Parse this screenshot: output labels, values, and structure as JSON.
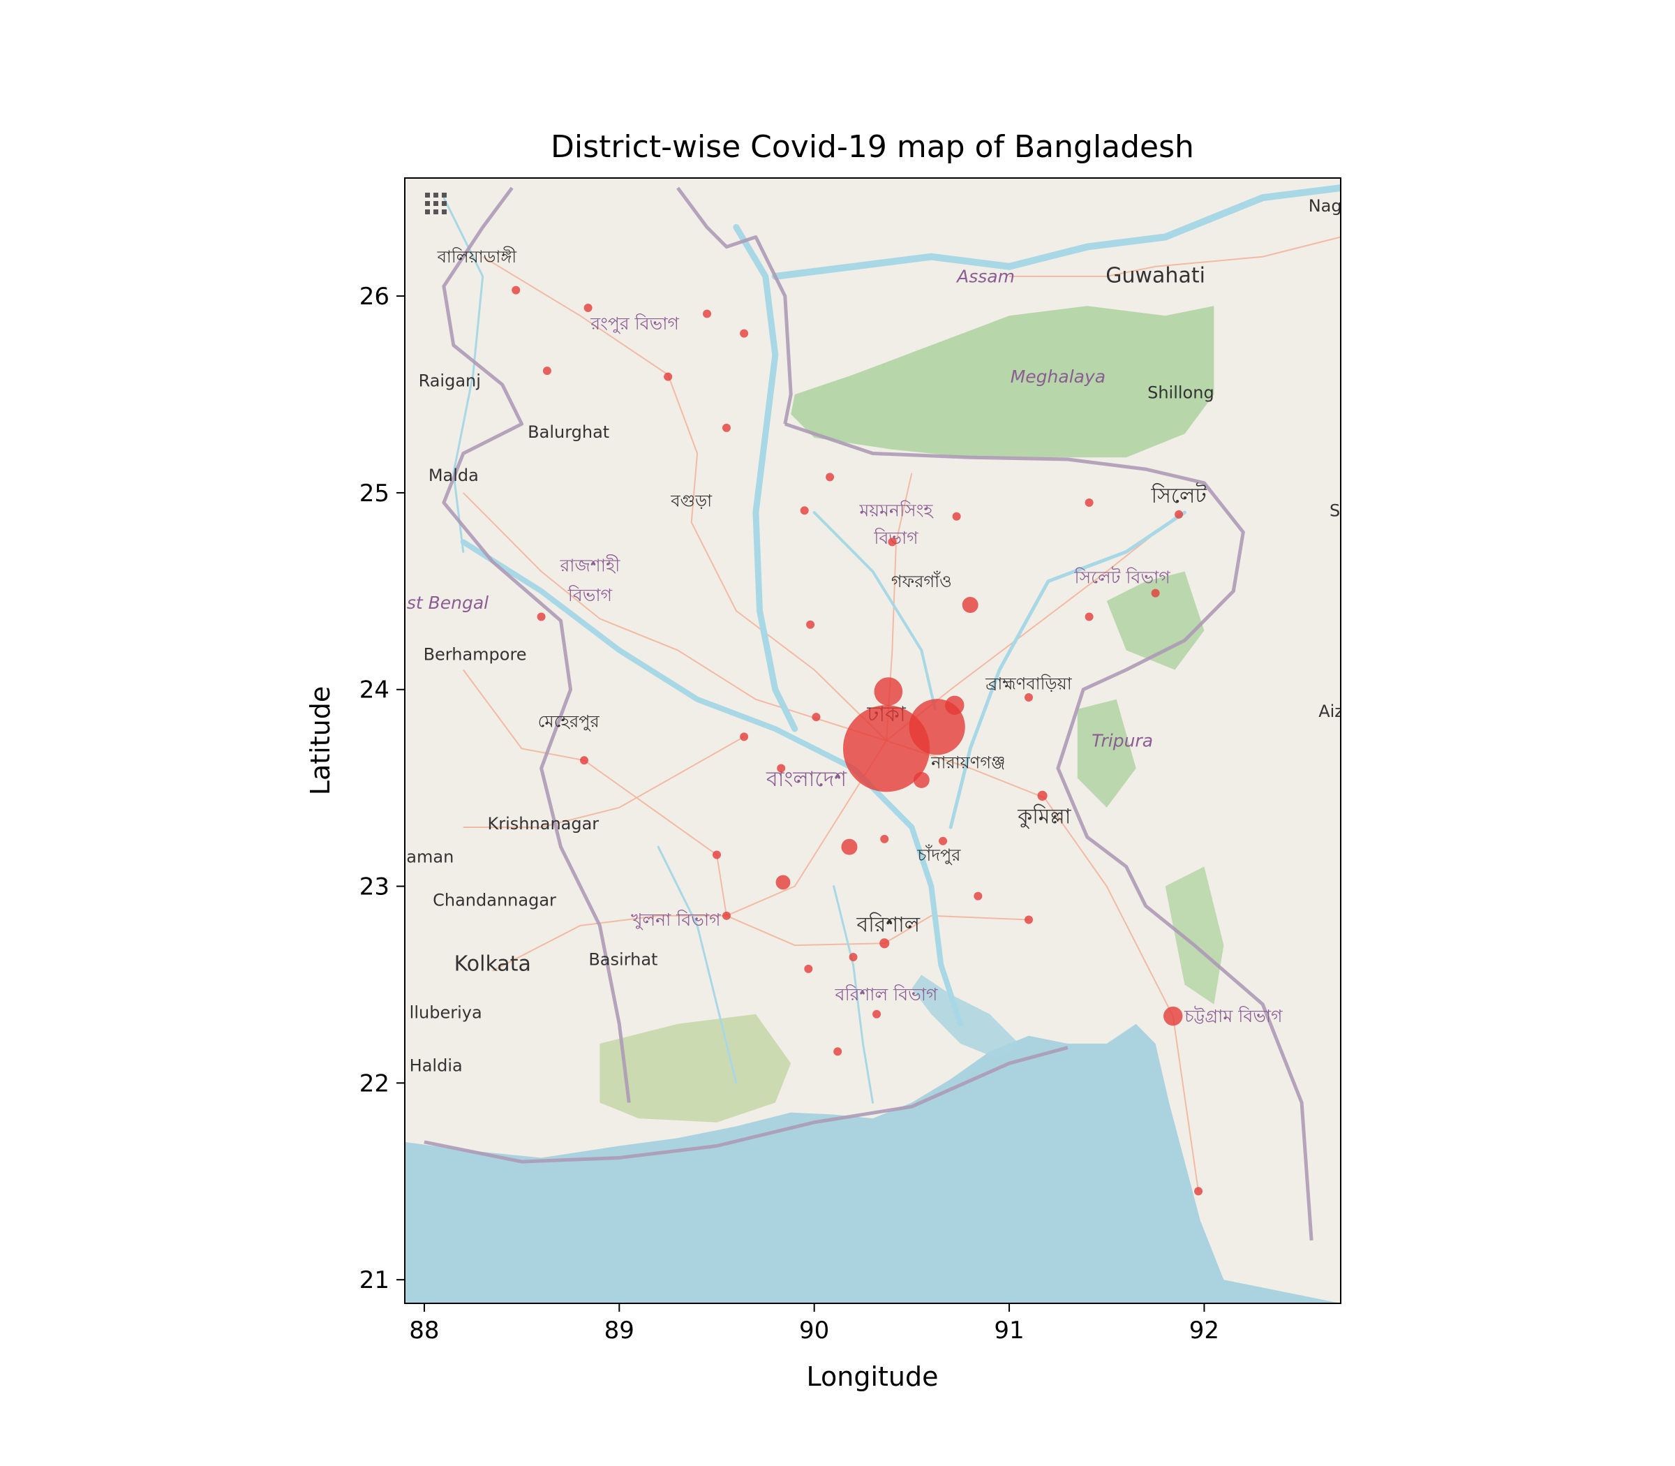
{
  "chart_data": {
    "type": "scatter",
    "title": "District-wise Covid-19 map of Bangladesh",
    "xlabel": "Longitude",
    "ylabel": "Latitude",
    "xlim": [
      87.9,
      92.7
    ],
    "ylim": [
      20.88,
      26.6
    ],
    "xticks": [
      88,
      89,
      90,
      91,
      92
    ],
    "yticks": [
      21,
      22,
      23,
      24,
      25,
      26
    ],
    "grid": false,
    "marker_color": "#e53935",
    "points": [
      {
        "lon": 90.37,
        "lat": 23.7,
        "size": 3
      },
      {
        "lon": 90.63,
        "lat": 23.81,
        "size": 2
      },
      {
        "lon": 90.38,
        "lat": 23.99,
        "size": 1.1
      },
      {
        "lon": 90.72,
        "lat": 23.92,
        "size": 0.8
      },
      {
        "lon": 91.84,
        "lat": 22.34,
        "size": 0.8
      },
      {
        "lon": 90.55,
        "lat": 23.54,
        "size": 0.7
      },
      {
        "lon": 90.8,
        "lat": 24.43,
        "size": 0.7
      },
      {
        "lon": 90.18,
        "lat": 23.2,
        "size": 0.7
      },
      {
        "lon": 89.84,
        "lat": 23.02,
        "size": 0.65
      },
      {
        "lon": 90.36,
        "lat": 22.71,
        "size": 0.5
      },
      {
        "lon": 91.17,
        "lat": 23.46,
        "size": 0.5
      },
      {
        "lon": 88.47,
        "lat": 26.03,
        "size": 0.45
      },
      {
        "lon": 88.84,
        "lat": 25.94,
        "size": 0.45
      },
      {
        "lon": 89.45,
        "lat": 25.91,
        "size": 0.45
      },
      {
        "lon": 89.64,
        "lat": 25.81,
        "size": 0.45
      },
      {
        "lon": 88.63,
        "lat": 25.62,
        "size": 0.45
      },
      {
        "lon": 89.25,
        "lat": 25.59,
        "size": 0.45
      },
      {
        "lon": 89.55,
        "lat": 25.33,
        "size": 0.45
      },
      {
        "lon": 90.08,
        "lat": 25.08,
        "size": 0.45
      },
      {
        "lon": 89.95,
        "lat": 24.91,
        "size": 0.45
      },
      {
        "lon": 90.4,
        "lat": 24.75,
        "size": 0.45
      },
      {
        "lon": 90.73,
        "lat": 24.88,
        "size": 0.45
      },
      {
        "lon": 91.41,
        "lat": 24.95,
        "size": 0.45
      },
      {
        "lon": 91.87,
        "lat": 24.89,
        "size": 0.45
      },
      {
        "lon": 91.75,
        "lat": 24.49,
        "size": 0.45
      },
      {
        "lon": 91.41,
        "lat": 24.37,
        "size": 0.45
      },
      {
        "lon": 88.6,
        "lat": 24.37,
        "size": 0.45
      },
      {
        "lon": 89.98,
        "lat": 24.33,
        "size": 0.45
      },
      {
        "lon": 91.1,
        "lat": 23.96,
        "size": 0.45
      },
      {
        "lon": 90.01,
        "lat": 23.86,
        "size": 0.45
      },
      {
        "lon": 89.64,
        "lat": 23.76,
        "size": 0.45
      },
      {
        "lon": 89.83,
        "lat": 23.6,
        "size": 0.45
      },
      {
        "lon": 88.82,
        "lat": 23.64,
        "size": 0.45
      },
      {
        "lon": 90.36,
        "lat": 23.24,
        "size": 0.45
      },
      {
        "lon": 90.66,
        "lat": 23.23,
        "size": 0.45
      },
      {
        "lon": 89.5,
        "lat": 23.16,
        "size": 0.45
      },
      {
        "lon": 90.84,
        "lat": 22.95,
        "size": 0.45
      },
      {
        "lon": 91.1,
        "lat": 22.83,
        "size": 0.45
      },
      {
        "lon": 89.55,
        "lat": 22.85,
        "size": 0.45
      },
      {
        "lon": 90.2,
        "lat": 22.64,
        "size": 0.45
      },
      {
        "lon": 89.97,
        "lat": 22.58,
        "size": 0.45
      },
      {
        "lon": 90.32,
        "lat": 22.35,
        "size": 0.45
      },
      {
        "lon": 90.12,
        "lat": 22.16,
        "size": 0.45
      },
      {
        "lon": 91.97,
        "lat": 21.45,
        "size": 0.45
      }
    ]
  },
  "basemap": {
    "colors": {
      "land": "#f1eee8",
      "water": "#aad3df",
      "forest": "#add19e",
      "mangrove": "#c8d7ab",
      "border": "#ad9ab6",
      "road": "#f3b49b",
      "river": "#a8d8e6",
      "label": "#333333",
      "region_label": "#8b5d93"
    },
    "places": [
      {
        "name": "বালিয়াডাঙ্গী",
        "lon": 88.27,
        "lat": 26.17,
        "kind": "town"
      },
      {
        "name": "রংপুর বিভাগ",
        "lon": 89.08,
        "lat": 25.83,
        "kind": "region"
      },
      {
        "name": "Raiganj",
        "lon": 88.13,
        "lat": 25.54,
        "kind": "town"
      },
      {
        "name": "Balurghat",
        "lon": 88.74,
        "lat": 25.28,
        "kind": "town"
      },
      {
        "name": "Malda",
        "lon": 88.15,
        "lat": 25.06,
        "kind": "town"
      },
      {
        "name": "বগুড়া",
        "lon": 89.37,
        "lat": 24.93,
        "kind": "town"
      },
      {
        "name": "রাজশাহী",
        "lon": 88.85,
        "lat": 24.6,
        "kind": "region"
      },
      {
        "name": "বিভাগ",
        "lon": 88.85,
        "lat": 24.45,
        "kind": "region"
      },
      {
        "name": "st Bengal",
        "lon": 88.12,
        "lat": 24.41,
        "kind": "region"
      },
      {
        "name": "Berhampore",
        "lon": 88.26,
        "lat": 24.15,
        "kind": "town"
      },
      {
        "name": "মেহেরপুর",
        "lon": 88.74,
        "lat": 23.81,
        "kind": "town"
      },
      {
        "name": "Krishnanagar",
        "lon": 88.61,
        "lat": 23.29,
        "kind": "town"
      },
      {
        "name": "aman",
        "lon": 88.03,
        "lat": 23.12,
        "kind": "town"
      },
      {
        "name": "Chandannagar",
        "lon": 88.36,
        "lat": 22.9,
        "kind": "town"
      },
      {
        "name": "খুলনা বিভাগ",
        "lon": 89.29,
        "lat": 22.8,
        "kind": "region"
      },
      {
        "name": "Kolkata",
        "lon": 88.35,
        "lat": 22.57,
        "kind": "city"
      },
      {
        "name": "Basirhat",
        "lon": 89.02,
        "lat": 22.6,
        "kind": "town"
      },
      {
        "name": "lluberiya",
        "lon": 88.11,
        "lat": 22.33,
        "kind": "town"
      },
      {
        "name": "Haldia",
        "lon": 88.06,
        "lat": 22.06,
        "kind": "town"
      },
      {
        "name": "Assam",
        "lon": 90.88,
        "lat": 26.07,
        "kind": "region"
      },
      {
        "name": "Guwahati",
        "lon": 91.75,
        "lat": 26.07,
        "kind": "city"
      },
      {
        "name": "Meghalaya",
        "lon": 91.25,
        "lat": 25.56,
        "kind": "region"
      },
      {
        "name": "Shillong",
        "lon": 91.88,
        "lat": 25.48,
        "kind": "town"
      },
      {
        "name": "ময়মনসিংহ",
        "lon": 90.42,
        "lat": 24.88,
        "kind": "region"
      },
      {
        "name": "বিভাগ",
        "lon": 90.42,
        "lat": 24.74,
        "kind": "region"
      },
      {
        "name": "গফরগাঁও",
        "lon": 90.55,
        "lat": 24.52,
        "kind": "town"
      },
      {
        "name": "সিলেট",
        "lon": 91.87,
        "lat": 24.95,
        "kind": "city"
      },
      {
        "name": "সিলেট বিভাগ",
        "lon": 91.58,
        "lat": 24.54,
        "kind": "region"
      },
      {
        "name": "ব্রাহ্মণবাড়িয়া",
        "lon": 91.1,
        "lat": 24.0,
        "kind": "town"
      },
      {
        "name": "ঢাকা",
        "lon": 90.37,
        "lat": 23.84,
        "kind": "city"
      },
      {
        "name": "নারায়ণগঞ্জ",
        "lon": 90.79,
        "lat": 23.6,
        "kind": "town"
      },
      {
        "name": "বাংলাদেশ",
        "lon": 89.96,
        "lat": 23.51,
        "kind": "country"
      },
      {
        "name": "Tripura",
        "lon": 91.58,
        "lat": 23.71,
        "kind": "region"
      },
      {
        "name": "কুমিল্লা",
        "lon": 91.18,
        "lat": 23.32,
        "kind": "city"
      },
      {
        "name": "চাঁদপুর",
        "lon": 90.64,
        "lat": 23.13,
        "kind": "town"
      },
      {
        "name": "বরিশাল",
        "lon": 90.38,
        "lat": 22.77,
        "kind": "city"
      },
      {
        "name": "বরিশাল বিভাগ",
        "lon": 90.37,
        "lat": 22.42,
        "kind": "region"
      },
      {
        "name": "চট্টগ্রাম বিভাগ",
        "lon": 92.15,
        "lat": 22.31,
        "kind": "region"
      },
      {
        "name": "Aiz",
        "lon": 92.65,
        "lat": 23.86,
        "kind": "town"
      },
      {
        "name": "Nag",
        "lon": 92.62,
        "lat": 26.43,
        "kind": "town"
      },
      {
        "name": "S",
        "lon": 92.67,
        "lat": 24.88,
        "kind": "town"
      }
    ]
  }
}
